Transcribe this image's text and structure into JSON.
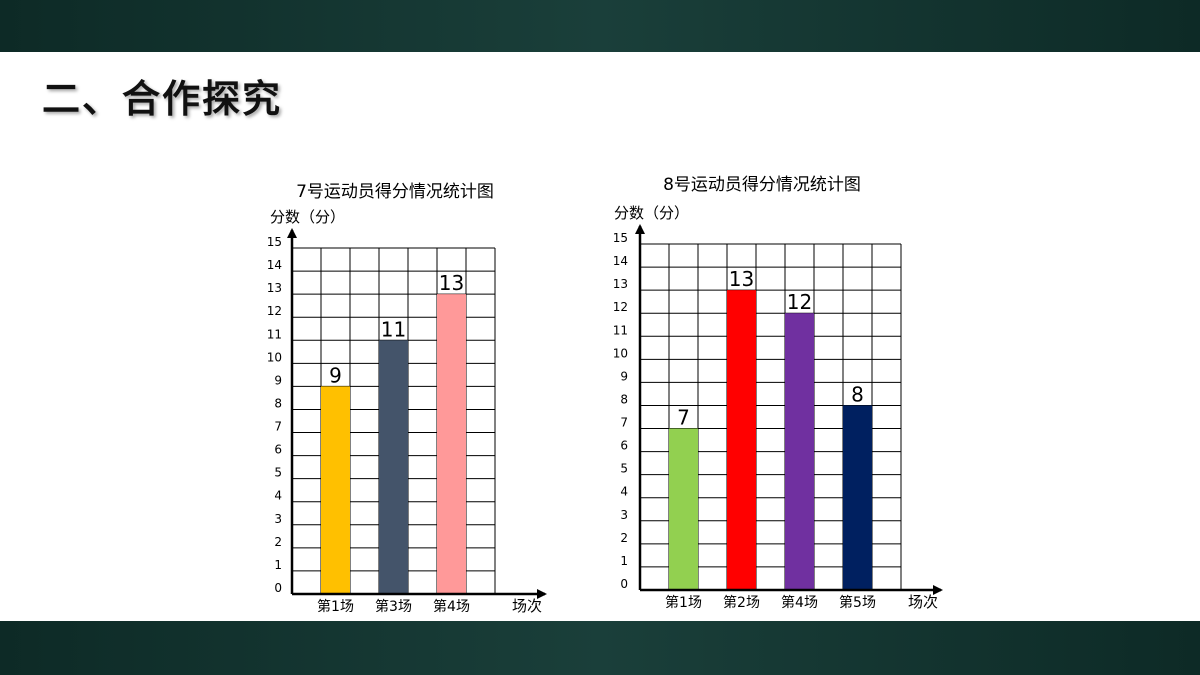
{
  "slide": {
    "title": "二、合作探究"
  },
  "chart_data": [
    {
      "type": "bar",
      "title": "7号运动员得分情况统计图",
      "ylabel": "分数（分）",
      "xlabel": "场次",
      "ylim": [
        0,
        15
      ],
      "grid": true,
      "categories": [
        "第1场",
        "第3场",
        "第4场"
      ],
      "values": [
        9,
        11,
        13
      ],
      "colors": [
        "#FFC000",
        "#44546A",
        "#FF9999"
      ]
    },
    {
      "type": "bar",
      "title": "8号运动员得分情况统计图",
      "ylabel": "分数（分）",
      "xlabel": "场次",
      "ylim": [
        0,
        15
      ],
      "grid": true,
      "categories": [
        "第1场",
        "第2场",
        "第4场",
        "第5场"
      ],
      "values": [
        7,
        13,
        12,
        8
      ],
      "colors": [
        "#92D050",
        "#FF0000",
        "#7030A0",
        "#002060"
      ]
    }
  ]
}
